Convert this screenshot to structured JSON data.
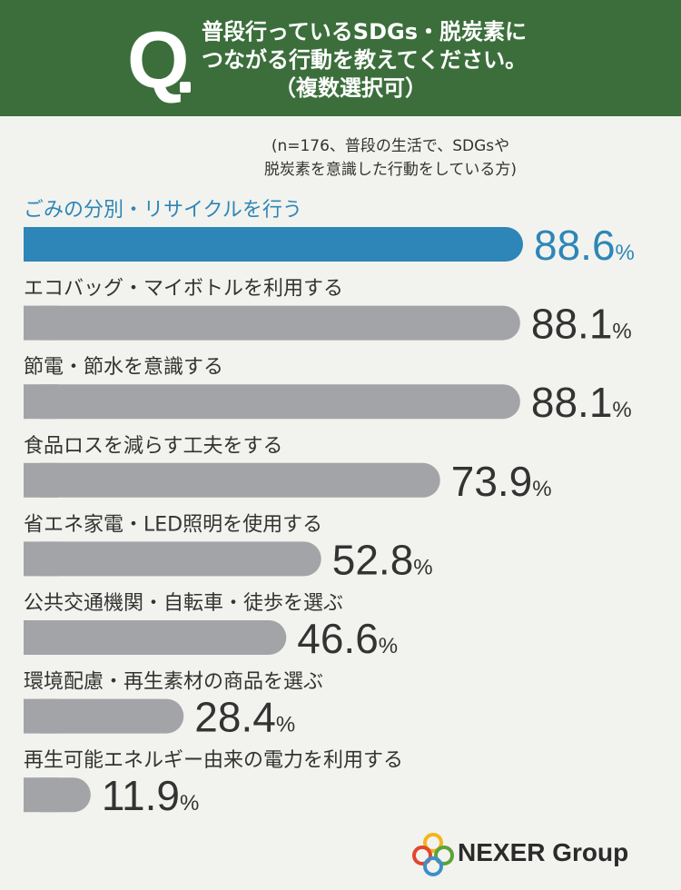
{
  "header": {
    "q_mark": "Q",
    "question_line1": "普段行っているSDGs・脱炭素に",
    "question_line2": "つながる行動を教えてください。",
    "question_line3": "（複数選択可）"
  },
  "subnote": {
    "line1": "(n=176、普段の生活で、SDGsや",
    "line2": "脱炭素を意識した行動をしている方)"
  },
  "chart_data": {
    "type": "bar",
    "orientation": "horizontal",
    "unit": "%",
    "categories": [
      "ごみの分別・リサイクルを行う",
      "エコバッグ・マイボトルを利用する",
      "節電・節水を意識する",
      "食品ロスを減らす工夫をする",
      "省エネ家電・LED照明を使用する",
      "公共交通機関・自転車・徒歩を選ぶ",
      "環境配慮・再生素材の商品を選ぶ",
      "再生可能エネルギー由来の電力を利用する"
    ],
    "values": [
      88.6,
      88.1,
      88.1,
      73.9,
      52.8,
      46.6,
      28.4,
      11.9
    ],
    "value_labels": [
      "88.6",
      "88.1",
      "88.1",
      "73.9",
      "52.8",
      "46.6",
      "28.4",
      "11.9"
    ],
    "highlight_index": 0,
    "colors": {
      "highlight": "#2e86b8",
      "bar": "#a3a4a8",
      "label": "#333333"
    }
  },
  "logo": {
    "text": "NEXER Group"
  },
  "colors": {
    "header_bg": "#3b6e3b",
    "page_bg": "#f2f3ee"
  }
}
